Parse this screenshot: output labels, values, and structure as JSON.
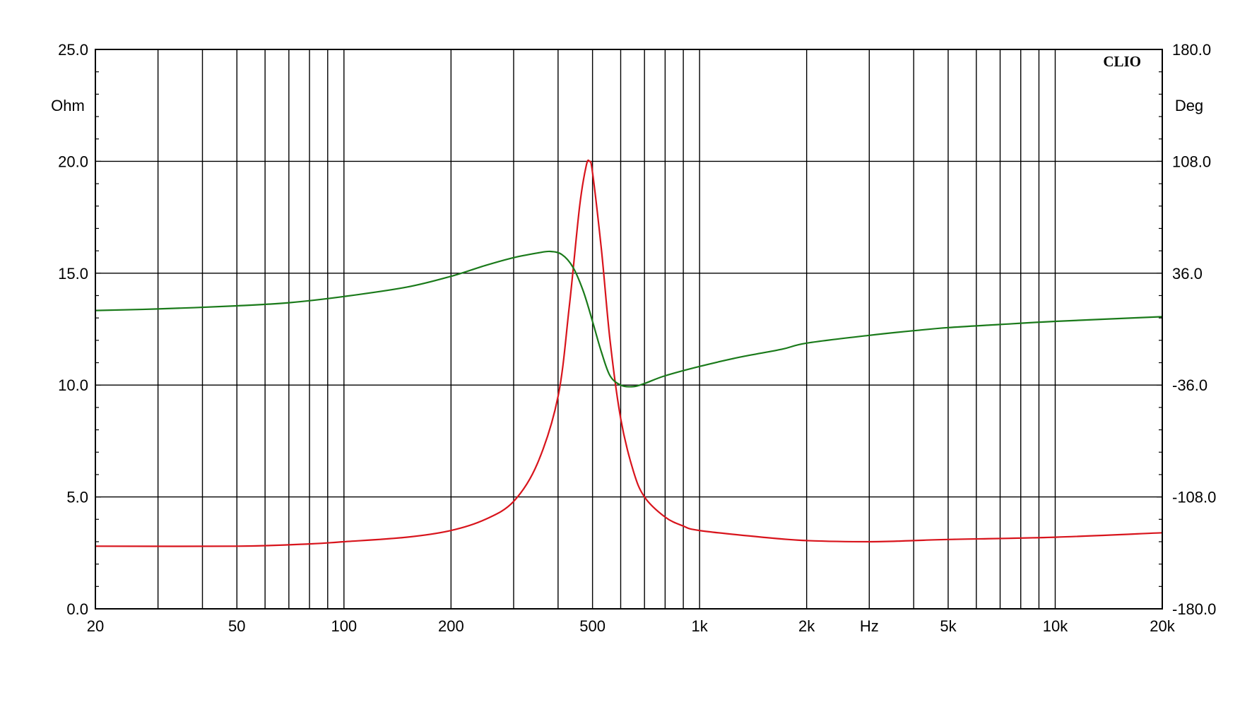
{
  "chart_data": {
    "type": "line",
    "title": "",
    "xlabel": "Hz",
    "ylabel": "Ohm",
    "y2label": "Deg",
    "watermark": "CLIO",
    "x_scale": "log",
    "xlim": [
      20,
      20000
    ],
    "ylim": [
      0,
      25
    ],
    "y2lim": [
      -180,
      180
    ],
    "grid": true,
    "x_ticks": [
      {
        "value": 20,
        "label": "20"
      },
      {
        "value": 50,
        "label": "50"
      },
      {
        "value": 100,
        "label": "100"
      },
      {
        "value": 200,
        "label": "200"
      },
      {
        "value": 500,
        "label": "500"
      },
      {
        "value": 1000,
        "label": "1k"
      },
      {
        "value": 2000,
        "label": "2k"
      },
      {
        "value": 5000,
        "label": "5k"
      },
      {
        "value": 10000,
        "label": "10k"
      },
      {
        "value": 20000,
        "label": "20k"
      }
    ],
    "y_ticks": [
      {
        "value": 0,
        "label": "0.0"
      },
      {
        "value": 5,
        "label": "5.0"
      },
      {
        "value": 10,
        "label": "10.0"
      },
      {
        "value": 15,
        "label": "15.0"
      },
      {
        "value": 20,
        "label": "20.0"
      },
      {
        "value": 25,
        "label": "25.0"
      }
    ],
    "y2_ticks": [
      {
        "value": -180,
        "label": "-180.0"
      },
      {
        "value": -108,
        "label": "-108.0"
      },
      {
        "value": -36,
        "label": "-36.0"
      },
      {
        "value": 36,
        "label": "36.0"
      },
      {
        "value": 108,
        "label": "108.0"
      },
      {
        "value": 180,
        "label": "180.0"
      }
    ],
    "series": [
      {
        "axis": "left",
        "color": "#d8141c",
        "points": [
          [
            20,
            2.8
          ],
          [
            50,
            2.8
          ],
          [
            80,
            2.9
          ],
          [
            100,
            3.0
          ],
          [
            150,
            3.2
          ],
          [
            200,
            3.5
          ],
          [
            250,
            4.0
          ],
          [
            300,
            4.8
          ],
          [
            350,
            6.5
          ],
          [
            400,
            9.5
          ],
          [
            430,
            13.5
          ],
          [
            460,
            18.0
          ],
          [
            480,
            19.8
          ],
          [
            490,
            20.0
          ],
          [
            500,
            19.5
          ],
          [
            530,
            16.0
          ],
          [
            560,
            12.0
          ],
          [
            600,
            8.5
          ],
          [
            650,
            6.2
          ],
          [
            700,
            5.0
          ],
          [
            800,
            4.1
          ],
          [
            900,
            3.7
          ],
          [
            1000,
            3.5
          ],
          [
            1500,
            3.2
          ],
          [
            2000,
            3.05
          ],
          [
            3000,
            3.0
          ],
          [
            4000,
            3.05
          ],
          [
            5000,
            3.1
          ],
          [
            10000,
            3.2
          ],
          [
            20000,
            3.4
          ]
        ]
      },
      {
        "axis": "right",
        "color": "#1a7a1a",
        "points": [
          [
            20,
            12
          ],
          [
            30,
            13
          ],
          [
            50,
            15
          ],
          [
            70,
            17
          ],
          [
            100,
            21
          ],
          [
            150,
            27
          ],
          [
            200,
            34
          ],
          [
            250,
            41
          ],
          [
            300,
            46
          ],
          [
            350,
            49
          ],
          [
            380,
            50
          ],
          [
            410,
            48
          ],
          [
            440,
            40
          ],
          [
            470,
            25
          ],
          [
            500,
            5
          ],
          [
            530,
            -15
          ],
          [
            560,
            -30
          ],
          [
            600,
            -36
          ],
          [
            650,
            -37
          ],
          [
            700,
            -35
          ],
          [
            800,
            -30
          ],
          [
            1000,
            -24
          ],
          [
            1300,
            -18
          ],
          [
            1700,
            -13
          ],
          [
            2000,
            -9
          ],
          [
            3000,
            -4
          ],
          [
            4000,
            -1
          ],
          [
            5000,
            1
          ],
          [
            7000,
            3
          ],
          [
            10000,
            5
          ],
          [
            20000,
            8
          ]
        ]
      }
    ]
  }
}
